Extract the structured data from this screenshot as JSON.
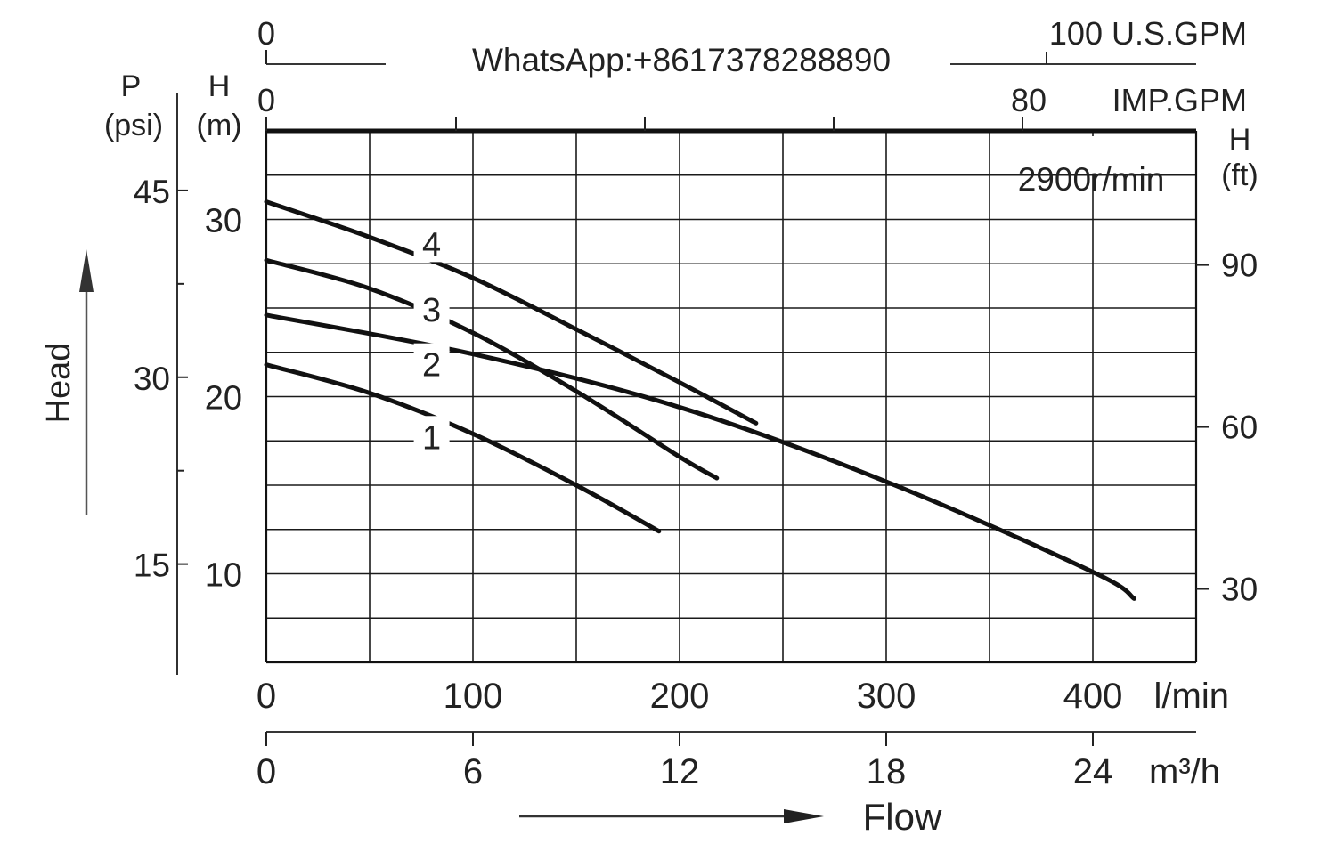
{
  "chart_data": {
    "type": "line",
    "speed_label": "2900r/min",
    "watermark": "WhatsApp:+8617378288890",
    "x_axis": {
      "unit": "l/min",
      "ticks": [
        0,
        100,
        200,
        300,
        400
      ],
      "range": [
        0,
        450
      ],
      "minor_step": 50
    },
    "x_axis_m3h": {
      "unit": "m³/h",
      "ticks": [
        0,
        6,
        12,
        18,
        24
      ],
      "range": [
        0,
        27
      ]
    },
    "x_axis_usgpm": {
      "unit": "100 U.S.GPM",
      "ticks": [
        "0"
      ]
    },
    "x_axis_impgpm": {
      "unit": "IMP.GPM",
      "ticks": [
        "0",
        "80"
      ]
    },
    "y_axis_m": {
      "label": "H",
      "unit": "(m)",
      "ticks": [
        10,
        20,
        30
      ],
      "range": [
        5,
        35
      ],
      "minor_step": 2.5
    },
    "y_axis_psi": {
      "label": "P",
      "unit": "(psi)",
      "ticks": [
        15,
        30,
        45
      ]
    },
    "y_axis_ft": {
      "label": "H",
      "unit": "(ft)",
      "ticks": [
        30,
        60,
        90
      ]
    },
    "head_label": "Head",
    "flow_label": "Flow",
    "series": [
      {
        "name": "1",
        "x": [
          0,
          50,
          100,
          150,
          190
        ],
        "y": [
          21.8,
          20.2,
          17.9,
          15.0,
          12.4
        ]
      },
      {
        "name": "2",
        "x": [
          0,
          100,
          200,
          300,
          400,
          420
        ],
        "y": [
          24.6,
          22.4,
          19.4,
          15.2,
          10.1,
          8.6
        ]
      },
      {
        "name": "3",
        "x": [
          0,
          50,
          100,
          150,
          200,
          218
        ],
        "y": [
          27.7,
          26.1,
          23.6,
          20.3,
          16.6,
          15.4
        ]
      },
      {
        "name": "4",
        "x": [
          0,
          50,
          100,
          150,
          200,
          237
        ],
        "y": [
          31.0,
          29.0,
          26.7,
          23.8,
          20.8,
          18.5
        ]
      }
    ],
    "series_label_pos": [
      {
        "x": 80,
        "y": 17.7
      },
      {
        "x": 80,
        "y": 21.8
      },
      {
        "x": 80,
        "y": 24.9
      },
      {
        "x": 80,
        "y": 28.6
      }
    ]
  }
}
